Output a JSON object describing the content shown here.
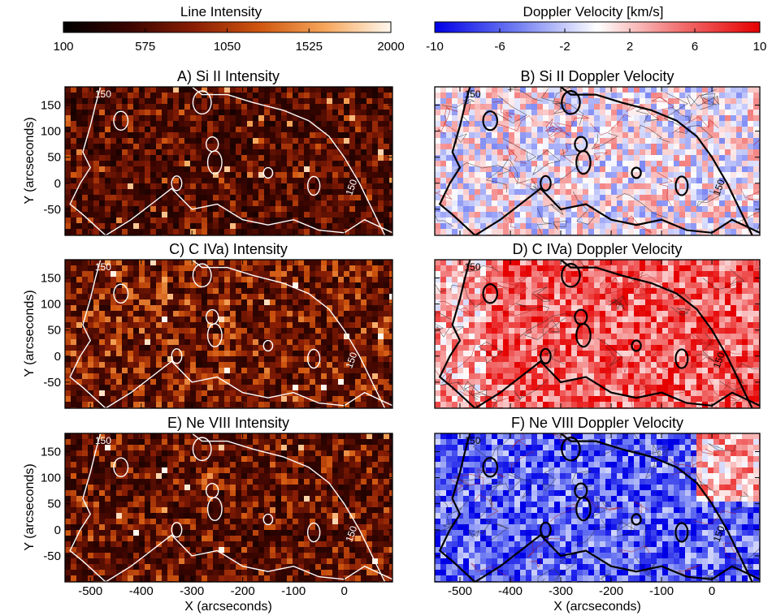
{
  "chart_data": {
    "type": "heatmap",
    "colorbars": [
      {
        "title": "Line Intensity",
        "ticks": [
          "100",
          "575",
          "1050",
          "1525",
          "2000"
        ],
        "tick_values": [
          100,
          575,
          1050,
          1525,
          2000
        ],
        "range": [
          100,
          2000
        ],
        "colors": [
          "#000000",
          "#3a0500",
          "#8a1e05",
          "#d0560f",
          "#f6a75c",
          "#fff8ee"
        ]
      },
      {
        "title": "Doppler Velocity [km/s]",
        "ticks": [
          "-10",
          "-6",
          "-2",
          "2",
          "6",
          "10"
        ],
        "tick_values": [
          -10,
          -6,
          -2,
          2,
          6,
          10
        ],
        "range": [
          -10,
          10
        ],
        "colors": [
          "#0000e6",
          "#6f7cf2",
          "#ffffff",
          "#f27272",
          "#e60000"
        ]
      }
    ],
    "axes": {
      "xlabel": "X (arcseconds)",
      "ylabel": "Y (arcseconds)",
      "xlim": [
        -550,
        95
      ],
      "ylim": [
        -100,
        185
      ],
      "xticks": [
        -500,
        -400,
        -300,
        -200,
        -100,
        0
      ],
      "xtick_labels": [
        "-500",
        "-400",
        "-300",
        "-200",
        "-100",
        "0"
      ],
      "yticks": [
        -50,
        0,
        50,
        100,
        150
      ],
      "ytick_labels": [
        "-50",
        "0",
        "50",
        "100",
        "150"
      ]
    },
    "contour_label": "150",
    "panels": [
      {
        "title": "A) Si II Intensity",
        "kind": "intensity",
        "mean_intensity": 700
      },
      {
        "title": "B) Si II Doppler Velocity",
        "kind": "velocity",
        "mean_velocity": 0
      },
      {
        "title": "C) C IVa) Intensity",
        "kind": "intensity",
        "mean_intensity": 900
      },
      {
        "title": "D) C IVa) Doppler Velocity",
        "kind": "velocity",
        "mean_velocity": 6
      },
      {
        "title": "E) Ne VIII Intensity",
        "kind": "intensity",
        "mean_intensity": 800
      },
      {
        "title": "F) Ne VIII Doppler Velocity",
        "kind": "velocity",
        "mean_velocity": -6
      }
    ]
  }
}
